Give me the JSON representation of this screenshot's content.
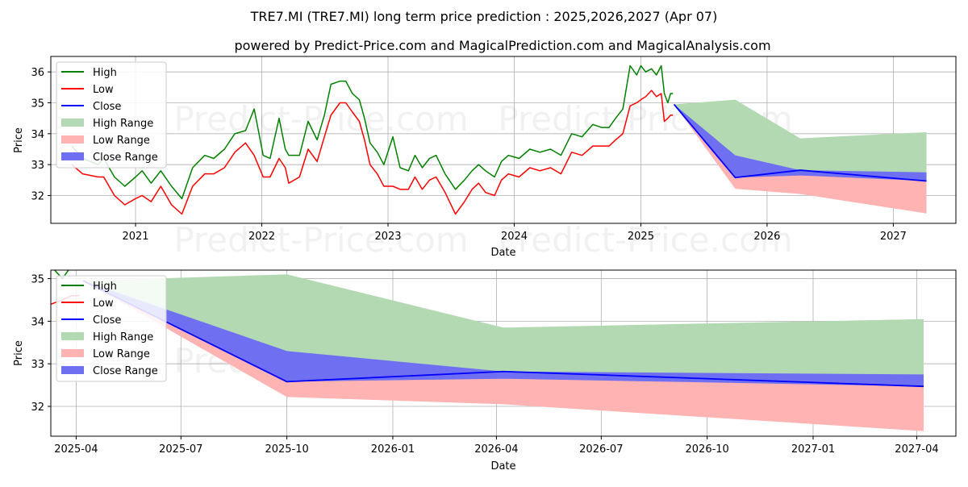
{
  "title": "TRE7.MI (TRE7.MI) long term price prediction : 2025,2026,2027 (Apr 07)",
  "subtitle": "powered by Predict-Price.com and MagicalPrediction.com and MagicalAnalysis.com",
  "watermark": "Predict-Price.com",
  "colors": {
    "high": "#008000",
    "low": "#ff0000",
    "close": "#0000ff",
    "high_range": "#b3d9b3",
    "low_range": "#ffb3b3",
    "close_range": "#6f6ff2"
  },
  "chart_data": [
    {
      "type": "line",
      "xlabel": "Date",
      "ylabel": "Price",
      "x_ticks": [
        "2021",
        "2022",
        "2023",
        "2024",
        "2025",
        "2026",
        "2027"
      ],
      "y_ticks": [
        32,
        33,
        34,
        35,
        36
      ],
      "xlim": [
        "2020-05-01",
        "2027-07-01"
      ],
      "ylim": [
        31.1,
        36.5
      ],
      "legend": [
        "High",
        "Low",
        "Close",
        "High Range",
        "Low Range",
        "Close Range"
      ],
      "legend_position": "top-left",
      "grid": true,
      "history": {
        "x": [
          "2020-07-01",
          "2020-08-01",
          "2020-09-15",
          "2020-10-01",
          "2020-11-01",
          "2020-12-01",
          "2021-01-01",
          "2021-01-20",
          "2021-02-15",
          "2021-03-15",
          "2021-04-15",
          "2021-05-15",
          "2021-06-15",
          "2021-07-20",
          "2021-08-15",
          "2021-09-15",
          "2021-10-15",
          "2021-11-15",
          "2021-12-10",
          "2022-01-05",
          "2022-01-25",
          "2022-02-20",
          "2022-03-10",
          "2022-03-20",
          "2022-04-20",
          "2022-05-15",
          "2022-06-10",
          "2022-07-01",
          "2022-07-20",
          "2022-08-15",
          "2022-09-01",
          "2022-09-20",
          "2022-10-10",
          "2022-10-25",
          "2022-11-10",
          "2022-12-01",
          "2022-12-20",
          "2023-01-15",
          "2023-02-05",
          "2023-03-01",
          "2023-03-20",
          "2023-04-10",
          "2023-05-01",
          "2023-05-20",
          "2023-06-15",
          "2023-07-15",
          "2023-08-10",
          "2023-09-01",
          "2023-09-20",
          "2023-10-10",
          "2023-11-05",
          "2023-11-25",
          "2023-12-15",
          "2024-01-15",
          "2024-02-15",
          "2024-03-15",
          "2024-04-15",
          "2024-05-15",
          "2024-06-15",
          "2024-07-15",
          "2024-08-15",
          "2024-09-10",
          "2024-10-01",
          "2024-10-20",
          "2024-11-10",
          "2024-12-01",
          "2024-12-20",
          "2025-01-01",
          "2025-01-15",
          "2025-02-01",
          "2025-02-15",
          "2025-03-01",
          "2025-03-10",
          "2025-03-20",
          "2025-03-28",
          "2025-04-04"
        ],
        "close": [
          33.4,
          33.0,
          32.8,
          32.9,
          32.2,
          31.9,
          32.2,
          32.3,
          32.1,
          32.6,
          32.0,
          31.6,
          32.6,
          33.0,
          32.9,
          33.2,
          33.7,
          34.0,
          33.7,
          33.0,
          32.9,
          33.7,
          33.2,
          33.0,
          33.0,
          33.9,
          33.4,
          34.3,
          35.2,
          35.4,
          35.3,
          35.0,
          34.8,
          34.2,
          33.4,
          33.1,
          32.6,
          32.8,
          32.6,
          32.5,
          33.0,
          32.5,
          32.9,
          33.0,
          32.4,
          31.9,
          32.2,
          32.5,
          32.7,
          32.4,
          32.3,
          32.8,
          33.0,
          32.9,
          33.2,
          33.1,
          33.2,
          33.0,
          33.7,
          33.6,
          34.0,
          33.9,
          33.9,
          34.2,
          34.3,
          35.2,
          35.3,
          35.5,
          35.6,
          35.8,
          35.6,
          35.9,
          34.8,
          34.6,
          35.0,
          34.9
        ],
        "high": [
          33.6,
          33.2,
          33.0,
          33.2,
          32.6,
          32.3,
          32.6,
          32.8,
          32.4,
          32.8,
          32.3,
          31.9,
          32.9,
          33.3,
          33.2,
          33.5,
          34.0,
          34.1,
          34.8,
          33.3,
          33.2,
          34.5,
          33.5,
          33.3,
          33.3,
          34.4,
          33.8,
          34.6,
          35.6,
          35.7,
          35.7,
          35.3,
          35.1,
          34.5,
          33.7,
          33.4,
          33.0,
          33.9,
          32.9,
          32.8,
          33.3,
          32.9,
          33.2,
          33.3,
          32.7,
          32.2,
          32.5,
          32.8,
          33.0,
          32.8,
          32.6,
          33.1,
          33.3,
          33.2,
          33.5,
          33.4,
          33.5,
          33.3,
          34.0,
          33.9,
          34.3,
          34.2,
          34.2,
          34.5,
          34.8,
          36.2,
          35.9,
          36.2,
          36.0,
          36.1,
          35.9,
          36.2,
          35.3,
          35.0,
          35.3,
          35.3
        ],
        "low": [
          33.0,
          32.7,
          32.6,
          32.6,
          32.0,
          31.7,
          31.9,
          32.0,
          31.8,
          32.3,
          31.7,
          31.4,
          32.3,
          32.7,
          32.7,
          32.9,
          33.4,
          33.7,
          33.3,
          32.6,
          32.6,
          33.2,
          32.9,
          32.4,
          32.6,
          33.5,
          33.1,
          33.9,
          34.6,
          35.0,
          35.0,
          34.7,
          34.4,
          33.8,
          33.0,
          32.7,
          32.3,
          32.3,
          32.2,
          32.2,
          32.6,
          32.2,
          32.5,
          32.6,
          32.1,
          31.4,
          31.8,
          32.2,
          32.4,
          32.1,
          32.0,
          32.5,
          32.7,
          32.6,
          32.9,
          32.8,
          32.9,
          32.7,
          33.4,
          33.3,
          33.6,
          33.6,
          33.6,
          33.8,
          34.0,
          34.9,
          35.0,
          35.1,
          35.2,
          35.4,
          35.2,
          35.3,
          34.4,
          34.5,
          34.6,
          34.6
        ]
      },
      "forecast": {
        "x": [
          "2025-04-07",
          "2025-10-01",
          "2026-04-07",
          "2027-04-07"
        ],
        "close": [
          34.95,
          32.58,
          32.82,
          32.47
        ],
        "high_range": [
          [
            34.95,
            34.95
          ],
          [
            32.58,
            35.1
          ],
          [
            32.82,
            33.85
          ],
          [
            32.47,
            34.05
          ]
        ],
        "low_range": [
          [
            34.95,
            34.95
          ],
          [
            32.22,
            32.58
          ],
          [
            32.05,
            32.82
          ],
          [
            31.42,
            32.47
          ]
        ],
        "close_range": [
          [
            34.95,
            34.95
          ],
          [
            32.58,
            33.3
          ],
          [
            32.65,
            32.82
          ],
          [
            32.47,
            32.75
          ]
        ]
      }
    },
    {
      "type": "line",
      "xlabel": "Date",
      "ylabel": "Price",
      "x_ticks": [
        "2025-04",
        "2025-07",
        "2025-10",
        "2026-01",
        "2026-04",
        "2026-07",
        "2026-10",
        "2027-01",
        "2027-04"
      ],
      "y_ticks": [
        32,
        33,
        34,
        35
      ],
      "xlim": [
        "2025-03-10",
        "2027-05-05"
      ],
      "ylim": [
        31.3,
        35.2
      ],
      "legend": [
        "High",
        "Low",
        "Close",
        "High Range",
        "Low Range",
        "Close Range"
      ],
      "legend_position": "top-left",
      "grid": true
    }
  ]
}
